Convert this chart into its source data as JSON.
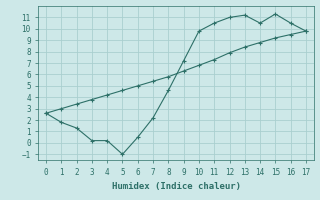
{
  "xlabel": "Humidex (Indice chaleur)",
  "background_color": "#cde8e8",
  "grid_color": "#aacfcf",
  "line_color": "#2d7068",
  "line1_x": [
    0,
    1,
    2,
    3,
    4,
    5,
    6,
    7,
    8,
    9,
    10,
    11,
    12,
    13,
    14,
    15,
    16,
    17
  ],
  "line1_y": [
    2.6,
    1.8,
    1.3,
    0.2,
    0.2,
    -1.0,
    0.5,
    2.2,
    4.6,
    7.2,
    9.8,
    10.5,
    11.0,
    11.2,
    10.5,
    11.3,
    10.5,
    9.8
  ],
  "line2_x": [
    0,
    1,
    2,
    3,
    4,
    5,
    6,
    7,
    8,
    9,
    10,
    11,
    12,
    13,
    14,
    15,
    16,
    17
  ],
  "line2_y": [
    2.6,
    3.0,
    3.4,
    3.8,
    4.2,
    4.6,
    5.0,
    5.4,
    5.8,
    6.3,
    6.8,
    7.3,
    7.9,
    8.4,
    8.8,
    9.2,
    9.5,
    9.8
  ],
  "xlim": [
    -0.5,
    17.5
  ],
  "ylim": [
    -1.5,
    12.0
  ],
  "xticks": [
    0,
    1,
    2,
    3,
    4,
    5,
    6,
    7,
    8,
    9,
    10,
    11,
    12,
    13,
    14,
    15,
    16,
    17
  ],
  "yticks": [
    -1,
    0,
    1,
    2,
    3,
    4,
    5,
    6,
    7,
    8,
    9,
    10,
    11
  ]
}
